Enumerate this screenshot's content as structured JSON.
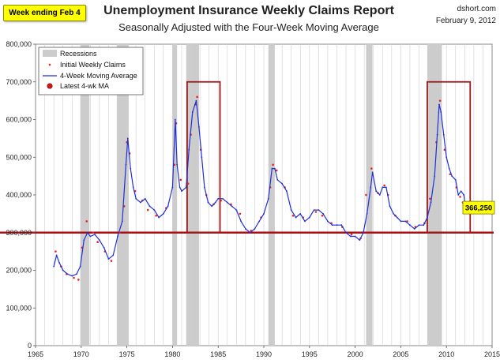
{
  "header": {
    "badge": "Week ending Feb 4",
    "title": "Unemployment Insurance Weekly Claims Report",
    "subtitle": "Seasonally Adjusted with the Four-Week Moving Average",
    "site": "dshort.com",
    "date": "February 9, 2012"
  },
  "colors": {
    "recession": "#cccccc",
    "initial_claims": "#e8231e",
    "moving_average": "#1f2fd8",
    "latest_marker": "#d9141a",
    "reference_line": "#a80f14",
    "highlight_box": "#9b1a1a",
    "annotation_fill": "#ffff00"
  },
  "chart_data": {
    "type": "line",
    "xlim": [
      1965,
      2015
    ],
    "ylim": [
      0,
      800000
    ],
    "x_ticks": [
      1965,
      1970,
      1975,
      1980,
      1985,
      1990,
      1995,
      2000,
      2005,
      2010,
      2015
    ],
    "y_ticks": [
      0,
      100000,
      200000,
      300000,
      400000,
      500000,
      600000,
      700000,
      800000
    ],
    "x_tick_labels": [
      "1965",
      "1970",
      "1975",
      "1980",
      "1985",
      "1990",
      "1995",
      "2000",
      "2005",
      "2010",
      "2015"
    ],
    "y_tick_labels": [
      "0",
      "100,000",
      "200,000",
      "300,000",
      "400,000",
      "500,000",
      "600,000",
      "700,000",
      "800,000"
    ],
    "grid": "vertical",
    "legend_position": "top-left",
    "legend": [
      "Recessions",
      "Initial Weekly Claims",
      "4-Week Moving Average",
      "Latest 4-wk MA"
    ],
    "recessions": [
      [
        1969.9,
        1970.9
      ],
      [
        1973.9,
        1975.2
      ],
      [
        1980.0,
        1980.5
      ],
      [
        1981.5,
        1982.9
      ],
      [
        1990.5,
        1991.2
      ],
      [
        2001.2,
        2001.9
      ],
      [
        2007.9,
        2009.5
      ]
    ],
    "reference_line": 300000,
    "highlight_boxes": [
      {
        "x": [
          1981.6,
          1985.2
        ],
        "y": [
          300000,
          700000
        ]
      },
      {
        "x": [
          2007.9,
          2012.6
        ],
        "y": [
          300000,
          700000
        ]
      }
    ],
    "series": [
      {
        "name": "4-Week Moving Average",
        "x": [
          1967.0,
          1967.3,
          1967.6,
          1968.0,
          1968.5,
          1969.0,
          1969.5,
          1969.9,
          1970.3,
          1970.7,
          1971.0,
          1971.5,
          1972.0,
          1972.5,
          1973.0,
          1973.5,
          1974.0,
          1974.5,
          1974.9,
          1975.1,
          1975.4,
          1975.7,
          1976.0,
          1976.5,
          1977.0,
          1977.5,
          1978.0,
          1978.5,
          1979.0,
          1979.5,
          1980.0,
          1980.3,
          1980.5,
          1980.8,
          1981.0,
          1981.5,
          1981.8,
          1982.2,
          1982.6,
          1982.9,
          1983.2,
          1983.5,
          1983.9,
          1984.3,
          1984.7,
          1985.0,
          1985.5,
          1986.0,
          1986.5,
          1987.0,
          1987.5,
          1988.0,
          1988.5,
          1989.0,
          1989.5,
          1990.0,
          1990.5,
          1990.9,
          1991.2,
          1991.5,
          1992.0,
          1992.5,
          1993.0,
          1993.5,
          1994.0,
          1994.5,
          1995.0,
          1995.5,
          1996.0,
          1996.5,
          1997.0,
          1997.5,
          1998.0,
          1998.5,
          1999.0,
          1999.5,
          2000.0,
          2000.5,
          2000.9,
          2001.3,
          2001.7,
          2001.9,
          2002.3,
          2002.7,
          2003.0,
          2003.4,
          2003.8,
          2004.2,
          2004.6,
          2005.0,
          2005.5,
          2006.0,
          2006.5,
          2007.0,
          2007.5,
          2007.9,
          2008.3,
          2008.7,
          2009.0,
          2009.2,
          2009.4,
          2009.7,
          2010.0,
          2010.3,
          2010.6,
          2011.0,
          2011.3,
          2011.6,
          2011.9,
          2012.1
        ],
        "values": [
          210000,
          240000,
          220000,
          200000,
          190000,
          185000,
          190000,
          210000,
          280000,
          300000,
          290000,
          295000,
          280000,
          260000,
          230000,
          240000,
          290000,
          330000,
          480000,
          550000,
          470000,
          420000,
          390000,
          380000,
          390000,
          370000,
          360000,
          340000,
          350000,
          370000,
          420000,
          600000,
          480000,
          420000,
          410000,
          420000,
          520000,
          620000,
          650000,
          580000,
          500000,
          420000,
          380000,
          370000,
          380000,
          390000,
          390000,
          380000,
          370000,
          360000,
          330000,
          310000,
          300000,
          310000,
          330000,
          350000,
          390000,
          470000,
          470000,
          440000,
          430000,
          410000,
          360000,
          340000,
          350000,
          330000,
          340000,
          360000,
          360000,
          350000,
          330000,
          320000,
          320000,
          320000,
          300000,
          290000,
          290000,
          280000,
          300000,
          350000,
          420000,
          460000,
          410000,
          400000,
          420000,
          420000,
          370000,
          350000,
          340000,
          330000,
          330000,
          320000,
          310000,
          320000,
          320000,
          340000,
          380000,
          450000,
          560000,
          640000,
          620000,
          560000,
          500000,
          470000,
          450000,
          440000,
          400000,
          410000,
          400000,
          366250
        ]
      },
      {
        "name": "Initial Weekly Claims",
        "x": [
          1967.2,
          1967.8,
          1968.4,
          1969.2,
          1969.7,
          1970.1,
          1970.6,
          1971.3,
          1971.8,
          1972.6,
          1973.3,
          1974.2,
          1974.7,
          1975.0,
          1975.3,
          1975.9,
          1976.7,
          1977.3,
          1978.2,
          1979.3,
          1980.2,
          1980.4,
          1980.9,
          1981.7,
          1982.0,
          1982.5,
          1982.7,
          1983.1,
          1983.7,
          1984.5,
          1985.3,
          1986.4,
          1987.4,
          1988.6,
          1989.7,
          1990.7,
          1991.0,
          1991.4,
          1992.3,
          1993.2,
          1994.3,
          1995.7,
          1996.4,
          1997.4,
          1998.6,
          1999.6,
          2000.6,
          2001.2,
          2001.8,
          2002.5,
          2003.2,
          2003.6,
          2004.4,
          2005.7,
          2006.6,
          2007.6,
          2008.2,
          2008.9,
          2009.3,
          2009.8,
          2010.4,
          2011.1,
          2011.5,
          2011.8
        ],
        "values": [
          250000,
          210000,
          190000,
          180000,
          175000,
          260000,
          330000,
          300000,
          275000,
          250000,
          225000,
          300000,
          370000,
          540000,
          510000,
          410000,
          385000,
          360000,
          345000,
          365000,
          480000,
          590000,
          440000,
          430000,
          560000,
          640000,
          660000,
          520000,
          400000,
          375000,
          385000,
          375000,
          350000,
          305000,
          340000,
          420000,
          480000,
          465000,
          420000,
          345000,
          340000,
          355000,
          345000,
          325000,
          315000,
          295000,
          285000,
          400000,
          470000,
          405000,
          425000,
          400000,
          345000,
          330000,
          315000,
          325000,
          390000,
          540000,
          650000,
          520000,
          455000,
          420000,
          395000,
          380000
        ]
      }
    ],
    "latest": {
      "year": 2012.1,
      "value": 366250,
      "label": "366,250"
    }
  }
}
